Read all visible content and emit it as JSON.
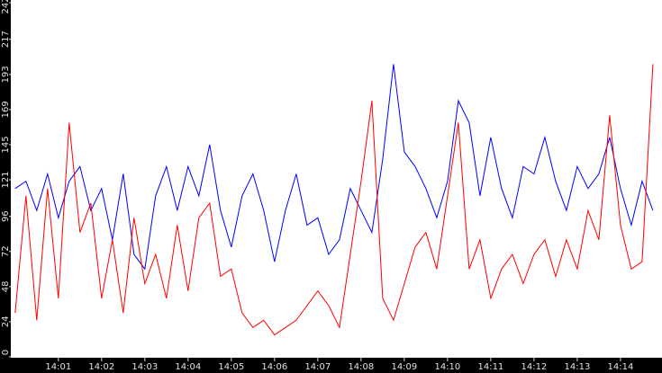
{
  "chart_data": {
    "type": "line",
    "x": [
      0,
      0.25,
      0.5,
      0.75,
      1,
      1.25,
      1.5,
      1.75,
      2,
      2.25,
      2.5,
      2.75,
      3,
      3.25,
      3.5,
      3.75,
      4,
      4.25,
      4.5,
      4.75,
      5,
      5.25,
      5.5,
      5.75,
      6,
      6.25,
      6.5,
      6.75,
      7,
      7.25,
      7.5,
      7.75,
      8,
      8.25,
      8.5,
      8.75,
      9,
      9.25,
      9.5,
      9.75,
      10,
      10.25,
      10.5,
      10.75,
      11,
      11.25,
      11.5,
      11.75,
      12,
      12.25,
      12.5,
      12.75,
      13,
      13.25,
      13.5,
      13.75,
      14,
      14.25,
      14.5,
      14.75
    ],
    "series": [
      {
        "color": "#0000ff",
        "values": [
          115,
          120,
          100,
          125,
          95,
          120,
          130,
          100,
          115,
          80,
          125,
          70,
          60,
          110,
          130,
          100,
          130,
          110,
          145,
          100,
          75,
          110,
          125,
          100,
          65,
          100,
          125,
          90,
          95,
          70,
          80,
          115,
          100,
          85,
          135,
          200,
          140,
          130,
          115,
          95,
          120,
          175,
          160,
          110,
          150,
          115,
          95,
          130,
          125,
          150,
          120,
          100,
          130,
          115,
          125,
          150,
          115,
          90,
          120,
          100
        ]
      },
      {
        "color": "#ff0000",
        "values": [
          30,
          110,
          25,
          115,
          40,
          160,
          85,
          105,
          40,
          80,
          30,
          95,
          50,
          70,
          40,
          90,
          45,
          95,
          105,
          55,
          60,
          30,
          20,
          25,
          15,
          20,
          25,
          35,
          45,
          35,
          20,
          70,
          120,
          175,
          40,
          25,
          50,
          75,
          85,
          60,
          110,
          160,
          60,
          80,
          40,
          60,
          70,
          50,
          70,
          80,
          55,
          80,
          60,
          100,
          80,
          165,
          90,
          60,
          65,
          200
        ]
      }
    ],
    "xlim": [
      -0.1,
      14.96
    ],
    "xticks": [
      {
        "value": 1,
        "label": "14:01"
      },
      {
        "value": 2,
        "label": "14:02"
      },
      {
        "value": 3,
        "label": "14:03"
      },
      {
        "value": 4,
        "label": "14:04"
      },
      {
        "value": 5,
        "label": "14:05"
      },
      {
        "value": 6,
        "label": "14:06"
      },
      {
        "value": 7,
        "label": "14:07"
      },
      {
        "value": 8,
        "label": "14:08"
      },
      {
        "value": 9,
        "label": "14:09"
      },
      {
        "value": 10,
        "label": "14:10"
      },
      {
        "value": 11,
        "label": "14:11"
      },
      {
        "value": 12,
        "label": "14:12"
      },
      {
        "value": 13,
        "label": "14:13"
      },
      {
        "value": 14,
        "label": "14:14"
      }
    ],
    "ylim": [
      0,
      242
    ],
    "yticks": [
      0,
      24,
      48,
      72,
      96,
      121,
      145,
      169,
      193,
      217,
      242
    ]
  }
}
